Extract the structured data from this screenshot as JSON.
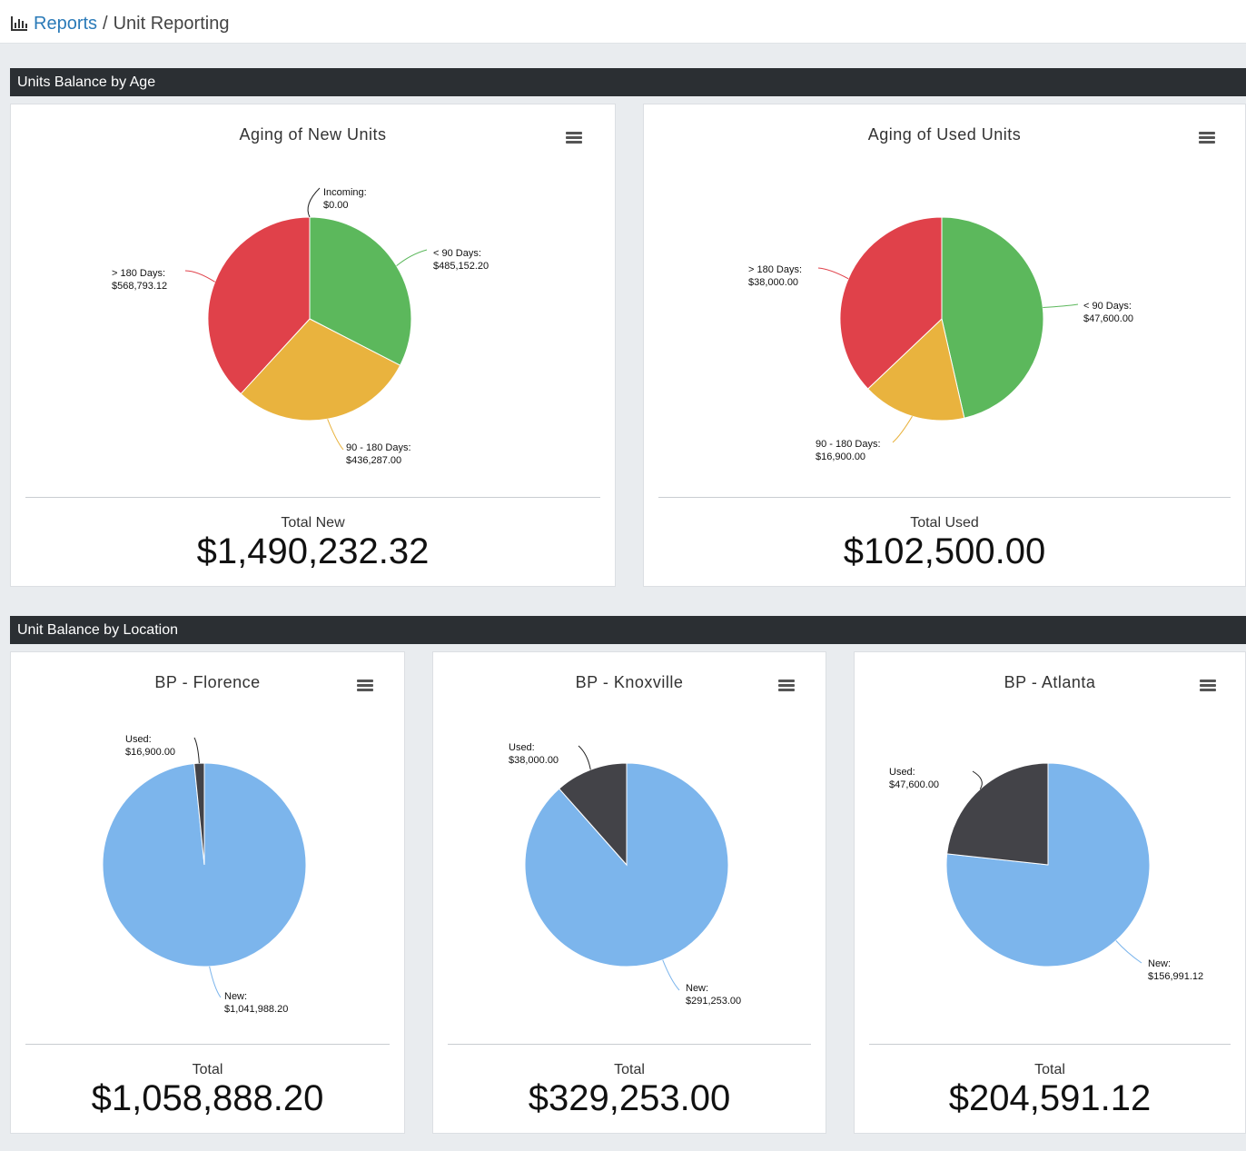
{
  "breadcrumb": {
    "icon": "bar-chart-icon",
    "root": "Reports",
    "separator": "/",
    "current": "Unit Reporting"
  },
  "sections": {
    "age": {
      "title": "Units Balance by Age"
    },
    "location": {
      "title": "Unit Balance by Location"
    }
  },
  "colors": {
    "green": "#5cb85c",
    "yellow": "#e9b33e",
    "red": "#e0414a",
    "blue": "#7cb5ec",
    "dark": "#434348"
  },
  "charts": {
    "new_units": {
      "title": "Aging of New Units",
      "menu_icon": "hamburger-menu-icon",
      "total_label": "Total New",
      "total_value": "$1,490,232.32",
      "labels": {
        "incoming": [
          "Incoming:",
          "$0.00"
        ],
        "lt90": [
          "< 90 Days:",
          "$485,152.20"
        ],
        "d90_180": [
          "90 - 180 Days:",
          "$436,287.00"
        ],
        "gt180": [
          "> 180 Days:",
          "$568,793.12"
        ]
      }
    },
    "used_units": {
      "title": "Aging of Used Units",
      "menu_icon": "hamburger-menu-icon",
      "total_label": "Total Used",
      "total_value": "$102,500.00",
      "labels": {
        "lt90": [
          "< 90 Days:",
          "$47,600.00"
        ],
        "d90_180": [
          "90 - 180 Days:",
          "$16,900.00"
        ],
        "gt180": [
          "> 180 Days:",
          "$38,000.00"
        ]
      }
    },
    "florence": {
      "title": "BP - Florence",
      "menu_icon": "hamburger-menu-icon",
      "total_label": "Total",
      "total_value": "$1,058,888.20",
      "labels": {
        "used": [
          "Used:",
          "$16,900.00"
        ],
        "new": [
          "New:",
          "$1,041,988.20"
        ]
      }
    },
    "knoxville": {
      "title": "BP - Knoxville",
      "menu_icon": "hamburger-menu-icon",
      "total_label": "Total",
      "total_value": "$329,253.00",
      "labels": {
        "used": [
          "Used:",
          "$38,000.00"
        ],
        "new": [
          "New:",
          "$291,253.00"
        ]
      }
    },
    "atlanta": {
      "title": "BP - Atlanta",
      "menu_icon": "hamburger-menu-icon",
      "total_label": "Total",
      "total_value": "$204,591.12",
      "labels": {
        "used": [
          "Used:",
          "$47,600.00"
        ],
        "new": [
          "New:",
          "$156,991.12"
        ]
      }
    }
  },
  "chart_data": [
    {
      "type": "pie",
      "title": "Aging of New Units",
      "categories": [
        "Incoming",
        "< 90 Days",
        "90 - 180 Days",
        "> 180 Days"
      ],
      "values": [
        0,
        485152.2,
        436287.0,
        568793.12
      ]
    },
    {
      "type": "pie",
      "title": "Aging of Used Units",
      "categories": [
        "< 90 Days",
        "90 - 180 Days",
        "> 180 Days"
      ],
      "values": [
        47600.0,
        16900.0,
        38000.0
      ]
    },
    {
      "type": "pie",
      "title": "BP - Florence",
      "categories": [
        "Used",
        "New"
      ],
      "values": [
        16900.0,
        1041988.2
      ]
    },
    {
      "type": "pie",
      "title": "BP - Knoxville",
      "categories": [
        "Used",
        "New"
      ],
      "values": [
        38000.0,
        291253.0
      ]
    },
    {
      "type": "pie",
      "title": "BP - Atlanta",
      "categories": [
        "Used",
        "New"
      ],
      "values": [
        47600.0,
        156991.12
      ]
    }
  ]
}
